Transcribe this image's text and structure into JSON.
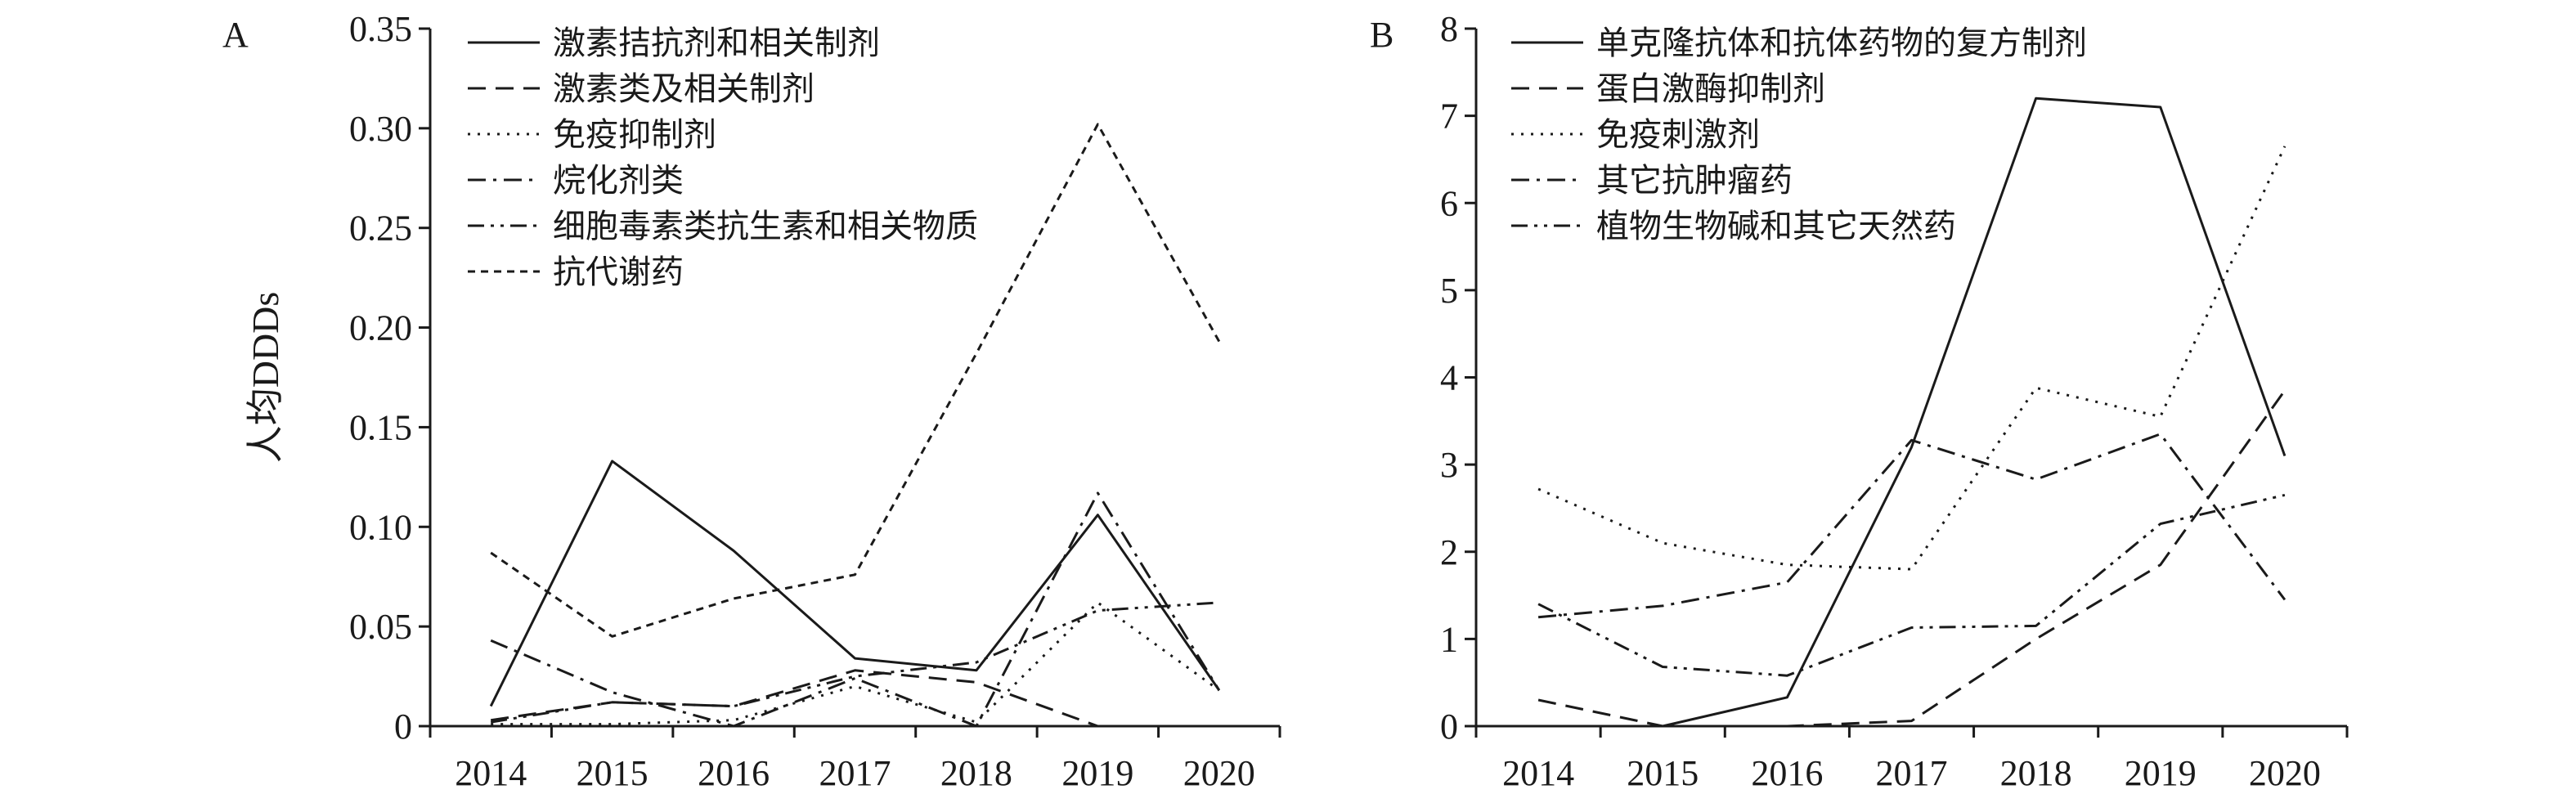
{
  "chart_data": [
    {
      "type": "line",
      "panel_label": "A",
      "ylabel": "人均DDDs",
      "xlabel": "",
      "x": [
        2014,
        2015,
        2016,
        2017,
        2018,
        2019,
        2020
      ],
      "ylim": [
        0,
        0.35
      ],
      "yticks": [
        "0",
        "0.05",
        "0.10",
        "0.15",
        "0.20",
        "0.25",
        "0.30",
        "0.35"
      ],
      "grid": false,
      "legend_position": "top-left",
      "series": [
        {
          "name": "激素拮抗剂和相关制剂",
          "dash": "solid",
          "values": [
            0.01,
            0.133,
            0.088,
            0.034,
            0.028,
            0.106,
            0.018
          ]
        },
        {
          "name": "激素类及相关制剂",
          "dash": "dashed",
          "values": [
            0.003,
            0.012,
            0.01,
            0.028,
            0.022,
            0.0,
            0.0
          ]
        },
        {
          "name": "免疫抑制剂",
          "dash": "dotted",
          "values": [
            0.001,
            0.001,
            0.003,
            0.02,
            0.002,
            0.062,
            0.018
          ]
        },
        {
          "name": "烷化剂类",
          "dash": "dash-dot",
          "values": [
            0.043,
            0.017,
            0.0,
            0.024,
            0.0,
            0.117,
            0.018
          ]
        },
        {
          "name": "细胞毒素类抗生素和相关物质",
          "dash": "dash-dot-dot",
          "values": [
            0.002,
            0.012,
            0.01,
            0.025,
            0.032,
            0.058,
            0.062
          ]
        },
        {
          "name": "抗代谢药",
          "dash": "short-dash",
          "values": [
            0.087,
            0.045,
            0.064,
            0.076,
            0.187,
            0.302,
            0.193
          ]
        }
      ]
    },
    {
      "type": "line",
      "panel_label": "B",
      "ylabel": "",
      "xlabel": "",
      "x": [
        2014,
        2015,
        2016,
        2017,
        2018,
        2019,
        2020
      ],
      "ylim": [
        0,
        8
      ],
      "yticks": [
        "0",
        "1",
        "2",
        "3",
        "4",
        "5",
        "6",
        "7",
        "8"
      ],
      "grid": false,
      "legend_position": "top-left",
      "series": [
        {
          "name": "单克隆抗体和抗体药物的复方制剂",
          "dash": "solid",
          "values": [
            0.0,
            0.0,
            0.33,
            3.2,
            7.2,
            7.1,
            3.1
          ]
        },
        {
          "name": "蛋白激酶抑制剂",
          "dash": "dashed",
          "values": [
            0.3,
            0.0,
            0.0,
            0.06,
            1.0,
            1.85,
            3.85
          ]
        },
        {
          "name": "免疫刺激剂",
          "dash": "dotted",
          "values": [
            2.72,
            2.1,
            1.85,
            1.8,
            3.88,
            3.55,
            6.65
          ]
        },
        {
          "name": "其它抗肿瘤药",
          "dash": "dash-dot",
          "values": [
            1.25,
            1.38,
            1.65,
            3.28,
            2.83,
            3.35,
            1.45
          ]
        },
        {
          "name": "植物生物碱和其它天然药",
          "dash": "dash-dot-dot",
          "values": [
            1.4,
            0.68,
            0.58,
            1.13,
            1.15,
            2.32,
            2.65
          ]
        }
      ]
    }
  ]
}
